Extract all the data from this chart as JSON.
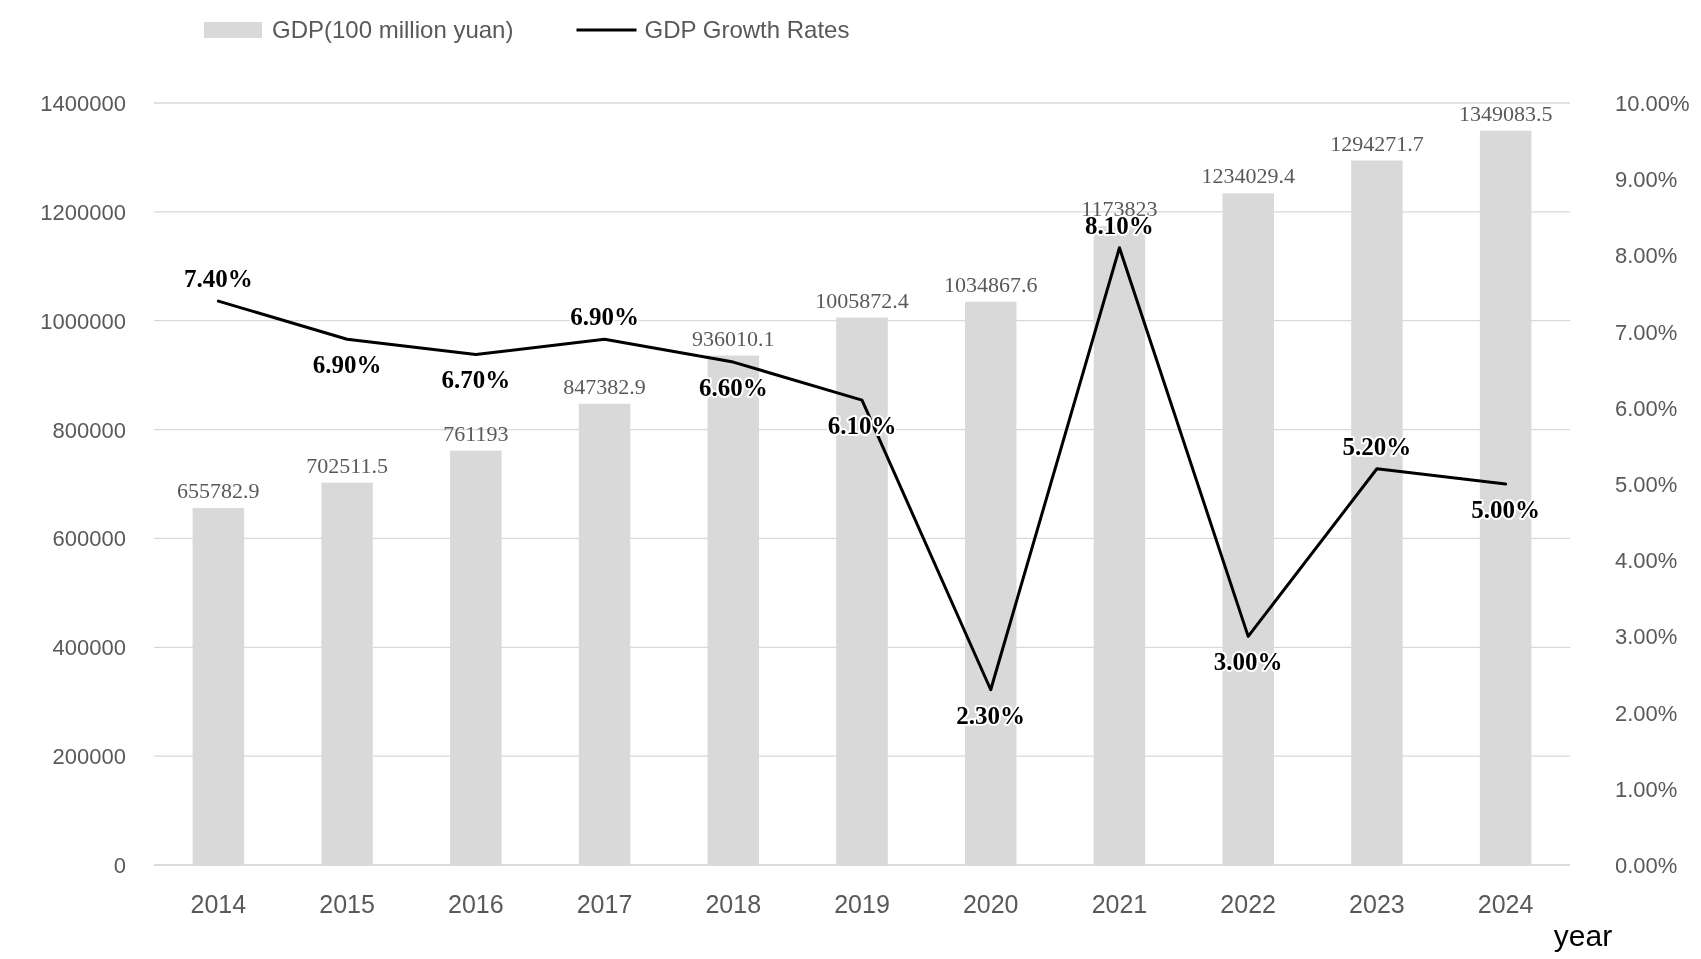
{
  "chart_data": {
    "type": "bar",
    "xlabel": "year",
    "categories": [
      "2014",
      "2015",
      "2016",
      "2017",
      "2018",
      "2019",
      "2020",
      "2021",
      "2022",
      "2023",
      "2024"
    ],
    "series": [
      {
        "name": "GDP(100 million yuan)",
        "color": "#d9d9d9",
        "values": [
          655782.9,
          702511.5,
          761193,
          847382.9,
          936010.1,
          1005872.4,
          1034867.6,
          1173823,
          1234029.4,
          1294271.7,
          1349083.5
        ],
        "value_labels": [
          "655782.9",
          "702511.5",
          "761193",
          "847382.9",
          "936010.1",
          "1005872.4",
          "1034867.6",
          "1173823",
          "1234029.4",
          "1294271.7",
          "1349083.5"
        ]
      },
      {
        "name": "GDP Growth Rates",
        "type": "line",
        "axis": "y2",
        "color": "#000000",
        "values": [
          7.4,
          6.9,
          6.7,
          6.9,
          6.6,
          6.1,
          2.3,
          8.1,
          3.0,
          5.2,
          5.0
        ],
        "value_labels": [
          "7.40%",
          "6.90%",
          "6.70%",
          "6.90%",
          "6.60%",
          "6.10%",
          "2.30%",
          "8.10%",
          "3.00%",
          "5.20%",
          "5.00%"
        ]
      }
    ],
    "ylim": [
      0,
      1400000
    ],
    "yticks": [
      0,
      200000,
      400000,
      600000,
      800000,
      1000000,
      1200000,
      1400000
    ],
    "y2lim": [
      0,
      10
    ],
    "y2ticks": [
      {
        "value": 0,
        "label": "0.00%"
      },
      {
        "value": 1,
        "label": "1.00%"
      },
      {
        "value": 2,
        "label": "2.00%"
      },
      {
        "value": 3,
        "label": "3.00%"
      },
      {
        "value": 4,
        "label": "4.00%"
      },
      {
        "value": 5,
        "label": "5.00%"
      },
      {
        "value": 6,
        "label": "6.00%"
      },
      {
        "value": 7,
        "label": "7.00%"
      },
      {
        "value": 8,
        "label": "8.00%"
      },
      {
        "value": 9,
        "label": "9.00%"
      },
      {
        "value": 10,
        "label": "10.00%"
      }
    ],
    "grid": "y",
    "legend": "top left",
    "line_style": "solid",
    "marker": "none"
  }
}
